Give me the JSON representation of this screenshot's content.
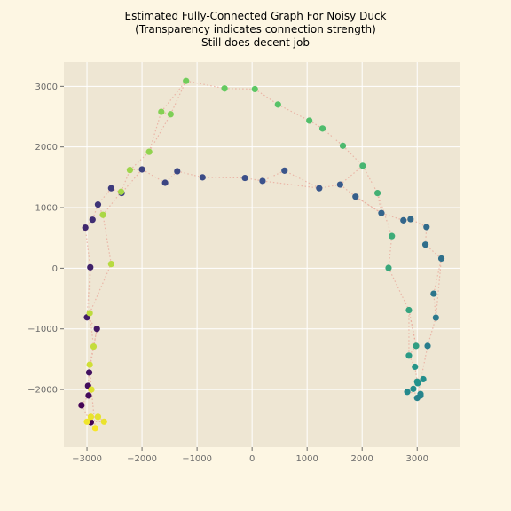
{
  "chart_data": {
    "type": "scatter",
    "title_lines": [
      "Estimated Fully-Connected Graph For Noisy Duck",
      "(Transparency indicates connection strength)",
      "Still does decent job"
    ],
    "xlabel": "",
    "ylabel": "",
    "xlim": [
      -3420,
      3770
    ],
    "ylim": [
      -2950,
      3400
    ],
    "xticks": [
      -3000,
      -2000,
      -1000,
      0,
      1000,
      2000,
      3000
    ],
    "xtick_labels": [
      "−3000",
      "−2000",
      "−1000",
      "0",
      "1000",
      "2000",
      "3000"
    ],
    "yticks": [
      -2000,
      -1000,
      0,
      1000,
      2000,
      3000
    ],
    "ytick_labels": [
      "−2000",
      "−1000",
      "0",
      "1000",
      "2000",
      "3000"
    ],
    "grid": true,
    "colors": {
      "background": "#fdf6e3",
      "plot_area": "#eee6d3",
      "grid": "#ffffff",
      "edge": "#e8a598",
      "colormap": "viridis"
    },
    "points": [
      {
        "x": -1200,
        "y": 3090,
        "c": 0.78
      },
      {
        "x": -500,
        "y": 2965,
        "c": 0.76
      },
      {
        "x": 50,
        "y": 2955,
        "c": 0.74
      },
      {
        "x": 470,
        "y": 2700,
        "c": 0.72
      },
      {
        "x": 1040,
        "y": 2435,
        "c": 0.7
      },
      {
        "x": 1280,
        "y": 2305,
        "c": 0.69
      },
      {
        "x": 1650,
        "y": 2020,
        "c": 0.68
      },
      {
        "x": 2010,
        "y": 1690,
        "c": 0.66
      },
      {
        "x": 2280,
        "y": 1240,
        "c": 0.64
      },
      {
        "x": 2540,
        "y": 530,
        "c": 0.62
      },
      {
        "x": 2480,
        "y": 5,
        "c": 0.6
      },
      {
        "x": 2850,
        "y": -690,
        "c": 0.58
      },
      {
        "x": 2980,
        "y": -1280,
        "c": 0.56
      },
      {
        "x": 2850,
        "y": -1440,
        "c": 0.54
      },
      {
        "x": 2960,
        "y": -1625,
        "c": 0.52
      },
      {
        "x": 3000,
        "y": -1870,
        "c": 0.51
      },
      {
        "x": 3010,
        "y": -1895,
        "c": 0.5
      },
      {
        "x": 3110,
        "y": -1830,
        "c": 0.49
      },
      {
        "x": 2930,
        "y": -1990,
        "c": 0.48
      },
      {
        "x": 2820,
        "y": -2040,
        "c": 0.47
      },
      {
        "x": 3060,
        "y": -2075,
        "c": 0.46
      },
      {
        "x": 3060,
        "y": -2100,
        "c": 0.45
      },
      {
        "x": 3000,
        "y": -2140,
        "c": 0.44
      },
      {
        "x": 3190,
        "y": -1280,
        "c": 0.42
      },
      {
        "x": 3340,
        "y": -815,
        "c": 0.4
      },
      {
        "x": 3300,
        "y": -420,
        "c": 0.39
      },
      {
        "x": 3440,
        "y": 160,
        "c": 0.37
      },
      {
        "x": 3150,
        "y": 390,
        "c": 0.36
      },
      {
        "x": 3170,
        "y": 680,
        "c": 0.35
      },
      {
        "x": 2880,
        "y": 810,
        "c": 0.34
      },
      {
        "x": 2750,
        "y": 790,
        "c": 0.33
      },
      {
        "x": 2350,
        "y": 910,
        "c": 0.32
      },
      {
        "x": 1880,
        "y": 1180,
        "c": 0.3
      },
      {
        "x": 1600,
        "y": 1380,
        "c": 0.28
      },
      {
        "x": 1220,
        "y": 1320,
        "c": 0.27
      },
      {
        "x": 590,
        "y": 1610,
        "c": 0.26
      },
      {
        "x": 190,
        "y": 1440,
        "c": 0.25
      },
      {
        "x": -130,
        "y": 1490,
        "c": 0.24
      },
      {
        "x": -900,
        "y": 1500,
        "c": 0.23
      },
      {
        "x": -1360,
        "y": 1600,
        "c": 0.22
      },
      {
        "x": -1580,
        "y": 1410,
        "c": 0.21
      },
      {
        "x": -2000,
        "y": 1630,
        "c": 0.2
      },
      {
        "x": -2370,
        "y": 1240,
        "c": 0.19
      },
      {
        "x": -2560,
        "y": 1320,
        "c": 0.18
      },
      {
        "x": -2800,
        "y": 1050,
        "c": 0.16
      },
      {
        "x": -2900,
        "y": 800,
        "c": 0.14
      },
      {
        "x": -3030,
        "y": 670,
        "c": 0.12
      },
      {
        "x": -2940,
        "y": 15,
        "c": 0.1
      },
      {
        "x": -3000,
        "y": -810,
        "c": 0.08
      },
      {
        "x": -2820,
        "y": -1000,
        "c": 0.07
      },
      {
        "x": -2960,
        "y": -1720,
        "c": 0.05
      },
      {
        "x": -2980,
        "y": -1940,
        "c": 0.04
      },
      {
        "x": -2970,
        "y": -2100,
        "c": 0.03
      },
      {
        "x": -3100,
        "y": -2260,
        "c": 0.01
      },
      {
        "x": -2930,
        "y": -2540,
        "c": 0.0
      },
      {
        "x": -2930,
        "y": -2450,
        "c": 0.97
      },
      {
        "x": -2800,
        "y": -2450,
        "c": 0.96
      },
      {
        "x": -2690,
        "y": -2530,
        "c": 0.97
      },
      {
        "x": -3000,
        "y": -2530,
        "c": 0.98
      },
      {
        "x": -2850,
        "y": -2640,
        "c": 0.99
      },
      {
        "x": -2920,
        "y": -2000,
        "c": 0.95
      },
      {
        "x": -2950,
        "y": -1590,
        "c": 0.93
      },
      {
        "x": -2880,
        "y": -1290,
        "c": 0.91
      },
      {
        "x": -2950,
        "y": -740,
        "c": 0.9
      },
      {
        "x": -2560,
        "y": 70,
        "c": 0.89
      },
      {
        "x": -2710,
        "y": 880,
        "c": 0.87
      },
      {
        "x": -2380,
        "y": 1260,
        "c": 0.86
      },
      {
        "x": -2220,
        "y": 1620,
        "c": 0.85
      },
      {
        "x": -1870,
        "y": 1920,
        "c": 0.83
      },
      {
        "x": -1650,
        "y": 2580,
        "c": 0.81
      },
      {
        "x": -1480,
        "y": 2540,
        "c": 0.8
      }
    ],
    "edges": [
      [
        0,
        1
      ],
      [
        1,
        2
      ],
      [
        2,
        3
      ],
      [
        3,
        4
      ],
      [
        4,
        5
      ],
      [
        5,
        6
      ],
      [
        6,
        7
      ],
      [
        7,
        8
      ],
      [
        8,
        9
      ],
      [
        9,
        10
      ],
      [
        10,
        11
      ],
      [
        11,
        12
      ],
      [
        12,
        13
      ],
      [
        13,
        14
      ],
      [
        14,
        15
      ],
      [
        15,
        16
      ],
      [
        16,
        17
      ],
      [
        17,
        18
      ],
      [
        18,
        19
      ],
      [
        19,
        20
      ],
      [
        20,
        21
      ],
      [
        21,
        22
      ],
      [
        22,
        23
      ],
      [
        23,
        24
      ],
      [
        24,
        25
      ],
      [
        25,
        26
      ],
      [
        26,
        27
      ],
      [
        27,
        28
      ],
      [
        28,
        29
      ],
      [
        29,
        30
      ],
      [
        30,
        31
      ],
      [
        31,
        32
      ],
      [
        32,
        33
      ],
      [
        33,
        34
      ],
      [
        34,
        35
      ],
      [
        35,
        36
      ],
      [
        36,
        37
      ],
      [
        37,
        38
      ],
      [
        38,
        39
      ],
      [
        39,
        40
      ],
      [
        40,
        41
      ],
      [
        41,
        42
      ],
      [
        42,
        43
      ],
      [
        43,
        44
      ],
      [
        44,
        45
      ],
      [
        45,
        46
      ],
      [
        46,
        47
      ],
      [
        47,
        48
      ],
      [
        48,
        49
      ],
      [
        49,
        50
      ],
      [
        50,
        51
      ],
      [
        51,
        52
      ],
      [
        52,
        53
      ],
      [
        53,
        54
      ],
      [
        54,
        55
      ],
      [
        55,
        56
      ],
      [
        56,
        57
      ],
      [
        57,
        58
      ],
      [
        58,
        59
      ],
      [
        59,
        60
      ],
      [
        60,
        61
      ],
      [
        61,
        62
      ],
      [
        62,
        63
      ],
      [
        63,
        64
      ],
      [
        64,
        65
      ],
      [
        65,
        66
      ],
      [
        66,
        67
      ],
      [
        67,
        68
      ],
      [
        68,
        69
      ],
      [
        69,
        70
      ],
      [
        70,
        0
      ],
      [
        8,
        31
      ],
      [
        7,
        33
      ],
      [
        36,
        34
      ],
      [
        32,
        31
      ],
      [
        26,
        24
      ],
      [
        11,
        12
      ],
      [
        13,
        11
      ],
      [
        47,
        63
      ],
      [
        62,
        49
      ],
      [
        65,
        44
      ],
      [
        66,
        42
      ],
      [
        67,
        41
      ],
      [
        68,
        70
      ],
      [
        69,
        0
      ]
    ]
  }
}
